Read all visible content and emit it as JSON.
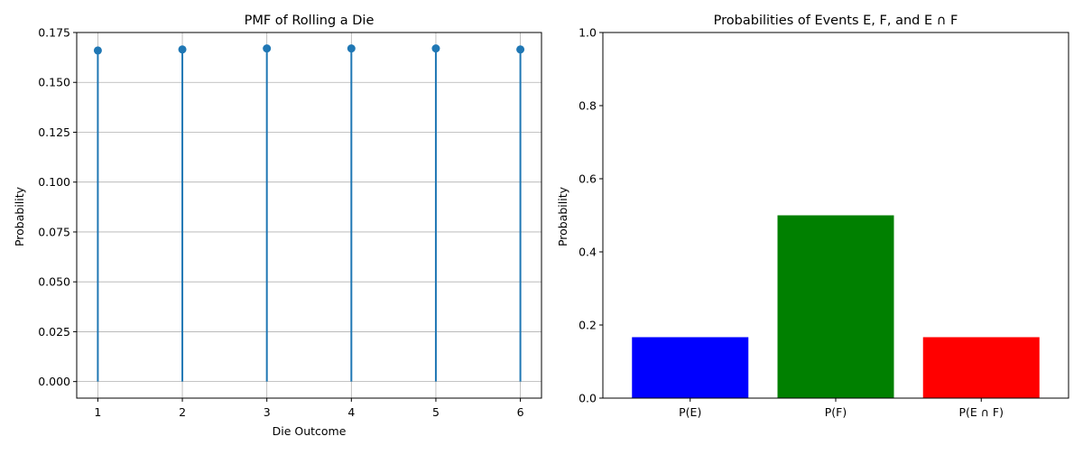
{
  "chart_data": [
    {
      "type": "stem",
      "title": "PMF of Rolling a Die",
      "xlabel": "Die Outcome",
      "ylabel": "Probability",
      "x": [
        1,
        2,
        3,
        4,
        5,
        6
      ],
      "values": [
        0.166,
        0.1665,
        0.167,
        0.167,
        0.167,
        0.1665
      ],
      "xlim": [
        0.75,
        6.25
      ],
      "ylim": [
        -0.0083,
        0.175
      ],
      "xticks": [
        "1",
        "2",
        "3",
        "4",
        "5",
        "6"
      ],
      "yticks": [
        "0.000",
        "0.025",
        "0.050",
        "0.075",
        "0.100",
        "0.125",
        "0.150",
        "0.175"
      ],
      "grid": true,
      "color": "#1f77b4"
    },
    {
      "type": "bar",
      "title": "Probabilities of Events E, F, and E ∩ F",
      "xlabel": "",
      "ylabel": "Probability",
      "categories": [
        "P(E)",
        "P(F)",
        "P(E ∩ F)"
      ],
      "values": [
        0.1667,
        0.5,
        0.1667
      ],
      "colors": [
        "#0000ff",
        "#008000",
        "#ff0000"
      ],
      "ylim": [
        0,
        1.0
      ],
      "yticks": [
        "0.0",
        "0.2",
        "0.4",
        "0.6",
        "0.8",
        "1.0"
      ],
      "grid": false
    }
  ]
}
